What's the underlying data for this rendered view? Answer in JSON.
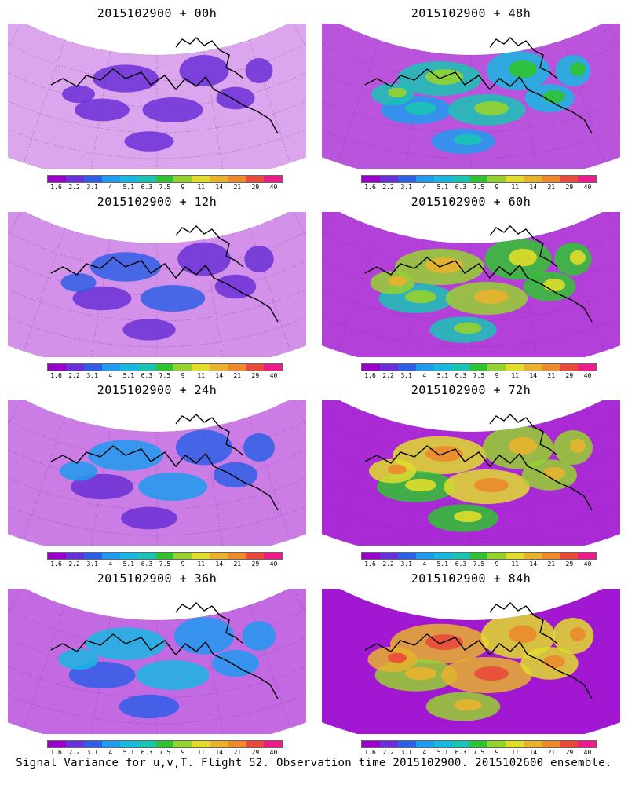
{
  "panels": [
    {
      "title": "2015102900 + 00h",
      "column": 0,
      "row": 0,
      "level": 0
    },
    {
      "title": "2015102900 + 12h",
      "column": 0,
      "row": 1,
      "level": 1
    },
    {
      "title": "2015102900 + 24h",
      "column": 0,
      "row": 2,
      "level": 2
    },
    {
      "title": "2015102900 + 36h",
      "column": 0,
      "row": 3,
      "level": 3
    },
    {
      "title": "2015102900 + 48h",
      "column": 1,
      "row": 0,
      "level": 4
    },
    {
      "title": "2015102900 + 60h",
      "column": 1,
      "row": 1,
      "level": 5
    },
    {
      "title": "2015102900 + 72h",
      "column": 1,
      "row": 2,
      "level": 6
    },
    {
      "title": "2015102900 + 84h",
      "column": 1,
      "row": 3,
      "level": 7
    }
  ],
  "colorbar": {
    "colors": [
      "#9900cc",
      "#6a2fd6",
      "#2f5fe6",
      "#1f9bef",
      "#18b7e0",
      "#19c4b4",
      "#2fc42f",
      "#95d22f",
      "#e0dd2b",
      "#e8b22e",
      "#ec8a2c",
      "#e94a3a",
      "#ec1d8b"
    ],
    "ticks": [
      "1.6",
      "2.2",
      "3.1",
      "4",
      "5.1",
      "6.3",
      "7.5",
      "9",
      "11",
      "14",
      "21",
      "29",
      "40"
    ]
  },
  "footer": "Signal Variance for u,v,T. Flight 52. Observation time 2015102900. 2015102600 ensemble."
}
